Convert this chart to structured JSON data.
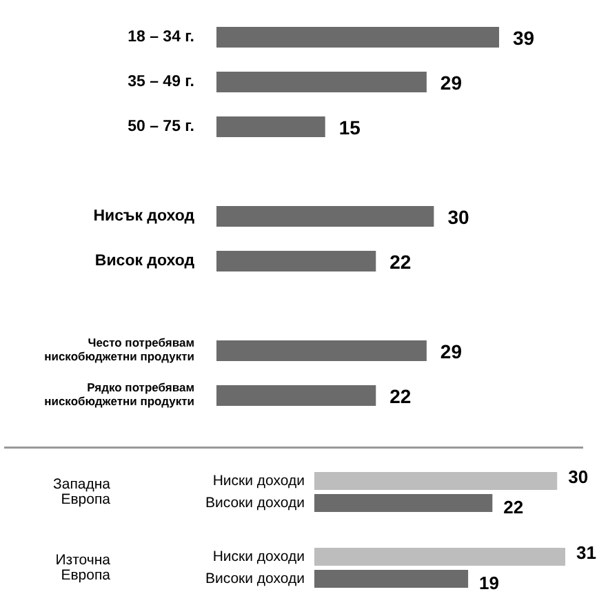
{
  "chart_data": [
    {
      "type": "bar",
      "orientation": "horizontal",
      "data_labels": true,
      "categories": [
        "18 – 34 г.",
        "35 – 49 г.",
        "50 – 75 г.",
        null,
        "Нисък доход",
        "Висок доход",
        null,
        "Често потребявам нискобюджетни продукти",
        "Рядко потребявам нискобюджетни продукти"
      ],
      "values": [
        39,
        29,
        15,
        null,
        30,
        22,
        null,
        29,
        22
      ],
      "color": "#6b6b6b"
    },
    {
      "type": "bar",
      "orientation": "horizontal",
      "data_labels": true,
      "categories": [
        "Западна Европа",
        "Източна Европа"
      ],
      "series": [
        {
          "name": "Ниски доходи",
          "color": "#bdbdbd",
          "values": [
            30,
            31
          ]
        },
        {
          "name": "Високи доходи",
          "color": "#6b6b6b",
          "values": [
            22,
            19
          ]
        }
      ]
    }
  ]
}
